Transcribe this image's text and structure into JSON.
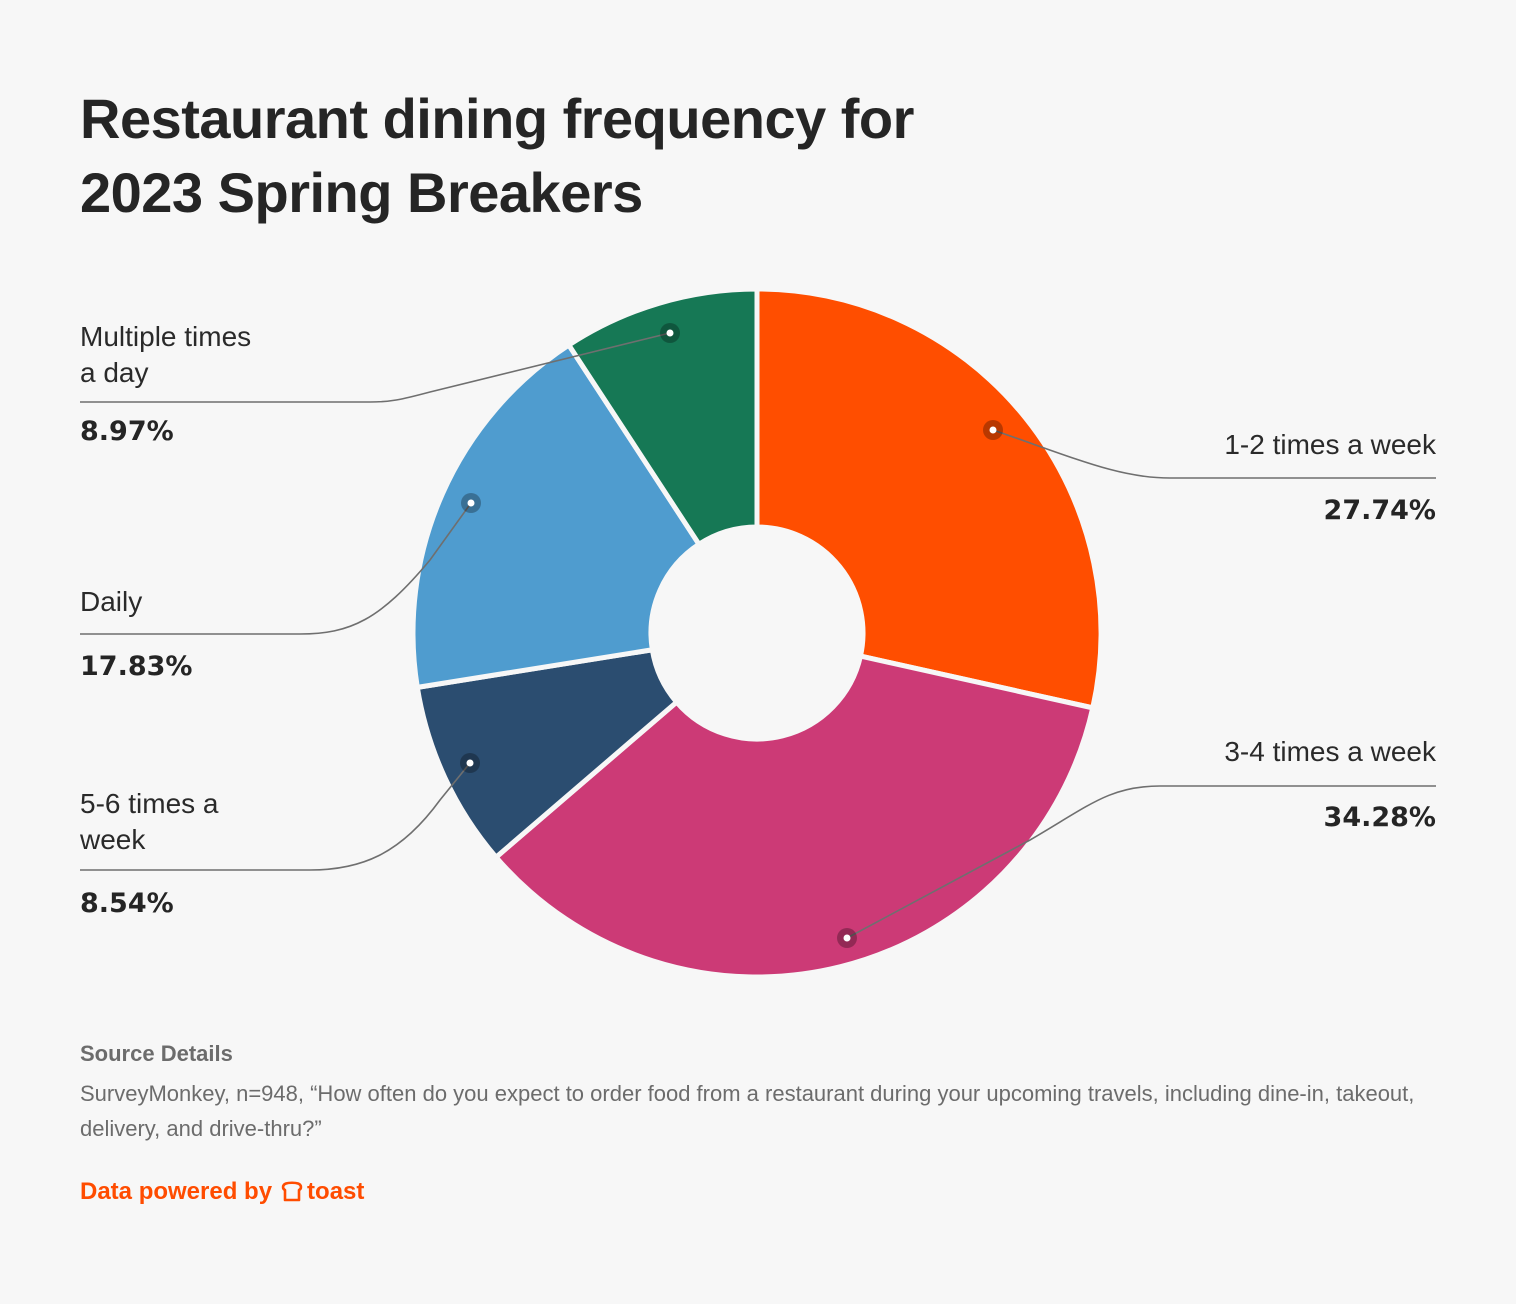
{
  "title": {
    "line1": "Restaurant dining frequency for",
    "line2": "2023 Spring Breakers"
  },
  "chart_data": {
    "type": "pie",
    "variant": "donut",
    "title": "Restaurant dining frequency for 2023 Spring Breakers",
    "slices": [
      {
        "label": "1-2 times a week",
        "value": 27.74,
        "display": "27.74%",
        "color": "#ff4e00"
      },
      {
        "label": "3-4 times a week",
        "value": 34.28,
        "display": "34.28%",
        "color": "#cc3a76"
      },
      {
        "label": "5-6 times a week",
        "value": 8.54,
        "display": "8.54%",
        "color": "#2b4d70"
      },
      {
        "label": "Daily",
        "value": 17.83,
        "display": "17.83%",
        "color": "#4f9ccf"
      },
      {
        "label": "Multiple times a day",
        "value": 8.97,
        "display": "8.97%",
        "color": "#167855"
      }
    ],
    "unit": "%"
  },
  "labels": {
    "one_two": {
      "line1": "1-2 times a week",
      "pct": "27.74%"
    },
    "three_four": {
      "line1": "3-4 times a week",
      "pct": "34.28%"
    },
    "five_six": {
      "line1": "5-6 times a",
      "line2": "week",
      "pct": "8.54%"
    },
    "daily": {
      "line1": "Daily",
      "pct": "17.83%"
    },
    "multiple": {
      "line1": "Multiple times",
      "line2": "a day",
      "pct": "8.97%"
    }
  },
  "source": {
    "heading": "Source Details",
    "text": "SurveyMonkey, n=948, “How often do you expect to order food from a restaurant during your upcoming travels, including dine-in, takeout, delivery, and drive-thru?”"
  },
  "footer": {
    "prefix": "Data powered by",
    "brand": "toast",
    "icon": "toast-logo-icon",
    "color": "#ff4c00"
  }
}
